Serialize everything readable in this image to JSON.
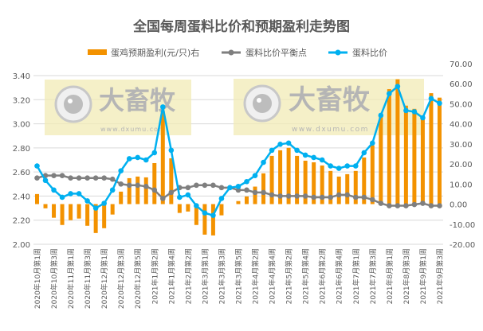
{
  "chart_data": {
    "type": "bar+line",
    "title": "全国每周蛋料比价和预期盈利走势图",
    "legend_position": "top",
    "grid": true,
    "categories": [
      "2020年10月第1周",
      "2020年10月第2周",
      "2020年10月第3周",
      "2020年10月第4周",
      "2020年11月第1周",
      "2020年11月第2周",
      "2020年11月第3周",
      "2020年11月第4周",
      "2020年12月第1周",
      "2020年12月第2周",
      "2020年12月第3周",
      "2020年12月第4周",
      "2020年12月第5周",
      "2021年1月第1周",
      "2021年1月第2周",
      "2021年1月第3周",
      "2021年1月第4周",
      "2021年2月第1周",
      "2021年2月第2周",
      "2021年2月第3周",
      "2021年3月第1周",
      "2021年3月第2周",
      "2021年3月第3周",
      "2021年3月第4周",
      "2021年3月第5周",
      "2021年4月第1周",
      "2021年4月第2周",
      "2021年4月第3周",
      "2021年4月第4周",
      "2021年5月第1周",
      "2021年5月第2周",
      "2021年5月第3周",
      "2021年5月第4周",
      "2021年6月第1周",
      "2021年6月第2周",
      "2021年6月第3周",
      "2021年6月第4周",
      "2021年6月第5周",
      "2021年7月第1周",
      "2021年7月第2周",
      "2021年7月第3周",
      "2021年7月第4周",
      "2021年8月第1周",
      "2021年8月第2周",
      "2021年8月第3周",
      "2021年8月第4周",
      "2021年9月第1周",
      "2021年9月第2周",
      "2021年9月第3周"
    ],
    "left_axis": {
      "ylim": [
        2.0,
        3.4
      ],
      "ticks": [
        "2.00",
        "2.20",
        "2.40",
        "2.60",
        "2.80",
        "3.00",
        "3.20",
        "3.40"
      ]
    },
    "right_axis": {
      "ylim": [
        -20,
        70
      ],
      "ticks": [
        "-20.00",
        "-10.00",
        "0.00",
        "10.00",
        "20.00",
        "30.00",
        "40.00",
        "50.00",
        "60.00",
        "70.00"
      ]
    },
    "series": [
      {
        "name": "蛋鸡预期盈利(元/只)右",
        "type": "bar",
        "axis": "right",
        "color": "#f39200",
        "values": [
          5.0,
          -2.1,
          -6.8,
          -10.4,
          -8.0,
          -7.2,
          -10.8,
          -14.4,
          -12.0,
          -5.2,
          6.2,
          12.9,
          13.7,
          13.3,
          20.4,
          46.2,
          22.8,
          -4.4,
          -3.7,
          -10.4,
          -15.2,
          -15.6,
          -5.6,
          0.0,
          1.5,
          3.8,
          8.7,
          15.3,
          24.0,
          26.8,
          28.0,
          24.0,
          21.6,
          20.8,
          19.2,
          16.5,
          13.7,
          14.9,
          16.5,
          23.2,
          29.2,
          44.5,
          57.2,
          62.1,
          49.0,
          47.4,
          43.1,
          55.2,
          53.0
        ]
      },
      {
        "name": "蛋料比价平衡点",
        "type": "line",
        "axis": "left",
        "color": "#7f7f7f",
        "values": [
          2.55,
          2.57,
          2.57,
          2.57,
          2.55,
          2.55,
          2.55,
          2.55,
          2.55,
          2.54,
          2.5,
          2.49,
          2.49,
          2.48,
          2.45,
          2.38,
          2.43,
          2.47,
          2.47,
          2.49,
          2.49,
          2.49,
          2.47,
          2.47,
          2.45,
          2.45,
          2.43,
          2.43,
          2.41,
          2.4,
          2.4,
          2.4,
          2.4,
          2.39,
          2.39,
          2.39,
          2.41,
          2.41,
          2.39,
          2.39,
          2.37,
          2.34,
          2.32,
          2.32,
          2.32,
          2.33,
          2.34,
          2.32,
          2.32
        ]
      },
      {
        "name": "蛋料比价",
        "type": "line",
        "axis": "left",
        "color": "#00b0f0",
        "values": [
          2.65,
          2.53,
          2.45,
          2.39,
          2.42,
          2.42,
          2.36,
          2.3,
          2.34,
          2.45,
          2.61,
          2.71,
          2.72,
          2.7,
          2.76,
          3.14,
          2.78,
          2.39,
          2.41,
          2.32,
          2.26,
          2.24,
          2.38,
          2.47,
          2.48,
          2.52,
          2.57,
          2.68,
          2.78,
          2.83,
          2.84,
          2.78,
          2.74,
          2.72,
          2.7,
          2.65,
          2.63,
          2.65,
          2.65,
          2.76,
          2.84,
          3.07,
          3.25,
          3.31,
          3.11,
          3.1,
          3.05,
          3.21,
          3.17
        ]
      }
    ]
  },
  "watermark": {
    "brand": "大畜牧",
    "url": "www.dxumu.com"
  }
}
